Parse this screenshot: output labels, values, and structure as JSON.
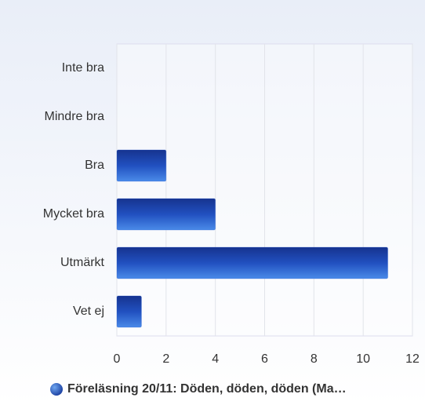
{
  "chart_data": {
    "type": "bar",
    "orientation": "horizontal",
    "categories": [
      "Inte bra",
      "Mindre bra",
      "Bra",
      "Mycket bra",
      "Utmärkt",
      "Vet ej"
    ],
    "series": [
      {
        "name": "Föreläsning 20/11: Döden, döden, döden (Ma…",
        "color": "#2a5fd0",
        "values": [
          0,
          0,
          2,
          4,
          11,
          1
        ]
      }
    ],
    "xlim": [
      0,
      12
    ],
    "xticks": [
      0,
      2,
      4,
      6,
      8,
      10,
      12
    ],
    "grid": true,
    "legend": "bottom"
  }
}
